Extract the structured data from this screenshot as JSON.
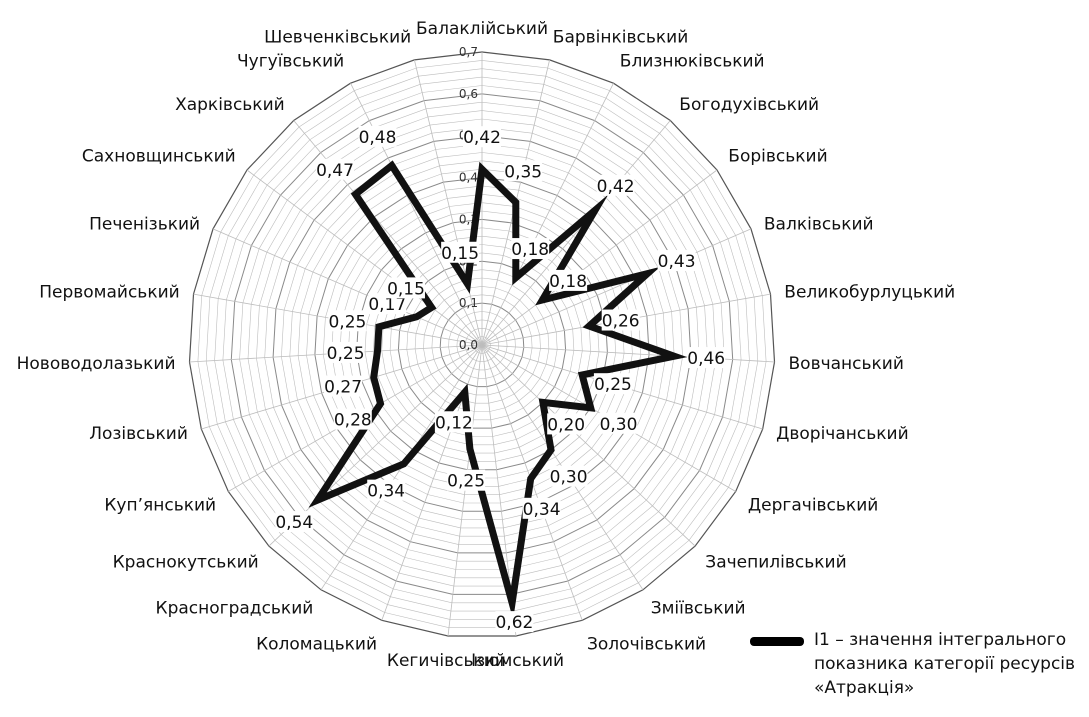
{
  "chart_data": {
    "type": "radar",
    "categories": [
      "Балаклійський",
      "Барвінківський",
      "Близнюківський",
      "Богодухівський",
      "Борівський",
      "Валківський",
      "Великобурлуцький",
      "Вовчанський",
      "Дворічанський",
      "Дергачівський",
      "Зачепилівський",
      "Зміївський",
      "Золочівський",
      "Ізюмський",
      "Кегичівський",
      "Коломацький",
      "Красноградський",
      "Краснокутський",
      "Куп’янський",
      "Лозівський",
      "Нововодолазький",
      "Первомайський",
      "Печенізький",
      "Сахновщинський",
      "Харківський",
      "Чугуївський",
      "Шевченківський"
    ],
    "series": [
      {
        "name": "І1 – значення інтегрального показника категорії ресурсів «Атракція»",
        "values": [
          0.42,
          0.35,
          0.18,
          0.42,
          0.18,
          0.43,
          0.26,
          0.46,
          0.25,
          0.3,
          0.2,
          0.3,
          0.34,
          0.62,
          0.25,
          0.12,
          0.34,
          0.54,
          0.28,
          0.27,
          0.25,
          0.25,
          0.17,
          0.15,
          0.47,
          0.48,
          0.15
        ]
      }
    ],
    "value_labels": [
      "0,42",
      "0,35",
      "0,18",
      "0,42",
      "0,18",
      "0,43",
      "0,26",
      "0,46",
      "0,25",
      "0,30",
      "0,20",
      "0,30",
      "0,34",
      "0,62",
      "0,25",
      "0,12",
      "0,34",
      "0,54",
      "0,28",
      "0,27",
      "0,25",
      "0,25",
      "0,17",
      "0,15",
      "0,47",
      "0,48",
      "0,15"
    ],
    "axis_ticks": [
      "0,0",
      "0,1",
      "0,2",
      "0,3",
      "0,4",
      "0,5",
      "0,6",
      "0,7"
    ],
    "rlim": [
      0,
      0.7
    ],
    "grid": true,
    "legend_position": "bottom-right",
    "colors": {
      "series": "#111111",
      "grid": "#bdbdbd",
      "ring": "#8a8a8a"
    }
  },
  "legend": {
    "text": "І1 – значення інтегрального показника категорії ресурсів «Атракція»"
  }
}
